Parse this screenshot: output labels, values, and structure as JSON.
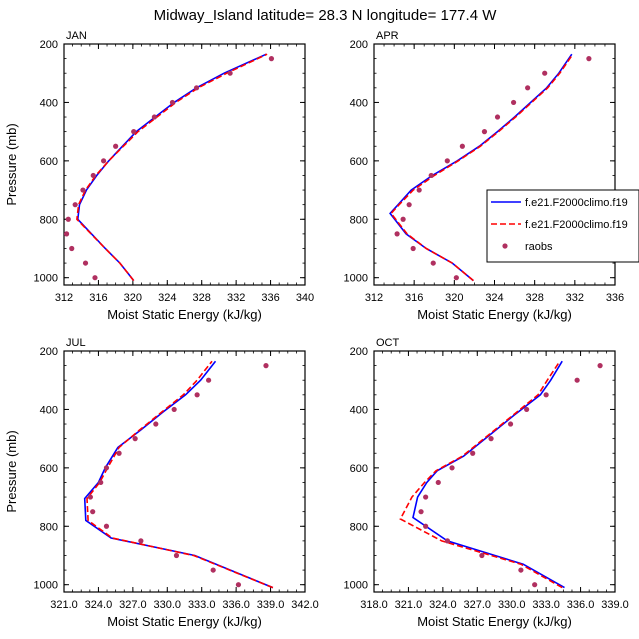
{
  "figure_title": "Midway_Island  latitude= 28.3 N longitude= 177.4 W",
  "legend": {
    "entries": [
      {
        "label": "f.e21.F2000climo.f19",
        "style": "solid",
        "color": "#0000ff"
      },
      {
        "label": "f.e21.F2000climo.f19",
        "style": "dashed",
        "color": "#ff0000"
      },
      {
        "label": "raobs",
        "style": "marker",
        "color": "#b03060"
      }
    ]
  },
  "chart_data": [
    {
      "type": "line",
      "panel_label": "JAN",
      "xlabel": "Moist Static Energy (kJ/kg)",
      "ylabel": "Pressure (mb)",
      "xlim": [
        312,
        340
      ],
      "ylim": [
        200,
        1025
      ],
      "y_inverted": true,
      "xticks": [
        "312",
        "316",
        "320",
        "324",
        "328",
        "332",
        "336",
        "340"
      ],
      "yticks": [
        "200",
        "400",
        "600",
        "800",
        "1000"
      ],
      "series": [
        {
          "style": "solid",
          "color": "#0000ff",
          "points": [
            [
              320.1,
              1010
            ],
            [
              318.5,
              950
            ],
            [
              316.8,
              900
            ],
            [
              313.6,
              800
            ],
            [
              313.8,
              750
            ],
            [
              314.6,
              700
            ],
            [
              315.8,
              650
            ],
            [
              317.2,
              600
            ],
            [
              318.8,
              550
            ],
            [
              320.4,
              500
            ],
            [
              322.6,
              450
            ],
            [
              324.8,
              400
            ],
            [
              327.4,
              350
            ],
            [
              330.6,
              300
            ],
            [
              335.5,
              235
            ]
          ]
        },
        {
          "style": "dashed",
          "color": "#ff0000",
          "points": [
            [
              320.1,
              1010
            ],
            [
              318.5,
              950
            ],
            [
              316.8,
              900
            ],
            [
              313.5,
              800
            ],
            [
              313.7,
              750
            ],
            [
              314.5,
              700
            ],
            [
              315.7,
              650
            ],
            [
              317.2,
              600
            ],
            [
              318.9,
              550
            ],
            [
              320.6,
              500
            ],
            [
              322.8,
              450
            ],
            [
              325.0,
              400
            ],
            [
              327.6,
              350
            ],
            [
              330.9,
              300
            ],
            [
              335.6,
              235
            ]
          ]
        },
        {
          "style": "marker",
          "color": "#b03060",
          "points": [
            [
              315.6,
              1000
            ],
            [
              314.5,
              950
            ],
            [
              312.9,
              900
            ],
            [
              312.3,
              850
            ],
            [
              312.5,
              800
            ],
            [
              313.3,
              750
            ],
            [
              314.2,
              700
            ],
            [
              315.4,
              650
            ],
            [
              316.6,
              600
            ],
            [
              318.0,
              550
            ],
            [
              320.1,
              500
            ],
            [
              322.5,
              450
            ],
            [
              324.6,
              400
            ],
            [
              327.4,
              350
            ],
            [
              331.3,
              300
            ],
            [
              336.1,
              250
            ]
          ]
        }
      ]
    },
    {
      "type": "line",
      "panel_label": "APR",
      "xlabel": "Moist Static Energy (kJ/kg)",
      "ylabel": "",
      "xlim": [
        312,
        336
      ],
      "ylim": [
        200,
        1025
      ],
      "y_inverted": true,
      "xticks": [
        "312",
        "316",
        "320",
        "324",
        "328",
        "332",
        "336"
      ],
      "yticks": [
        "200",
        "400",
        "600",
        "800",
        "1000"
      ],
      "series": [
        {
          "style": "solid",
          "color": "#0000ff",
          "points": [
            [
              321.9,
              1010
            ],
            [
              319.8,
              950
            ],
            [
              317.2,
              900
            ],
            [
              315.2,
              850
            ],
            [
              313.6,
              780
            ],
            [
              314.4,
              750
            ],
            [
              315.7,
              700
            ],
            [
              317.8,
              650
            ],
            [
              320.3,
              600
            ],
            [
              322.5,
              550
            ],
            [
              324.3,
              500
            ],
            [
              326.0,
              450
            ],
            [
              327.6,
              400
            ],
            [
              329.2,
              350
            ],
            [
              330.4,
              300
            ],
            [
              331.7,
              235
            ]
          ]
        },
        {
          "style": "dashed",
          "color": "#ff0000",
          "points": [
            [
              321.9,
              1010
            ],
            [
              319.8,
              950
            ],
            [
              317.2,
              900
            ],
            [
              315.3,
              850
            ],
            [
              313.7,
              780
            ],
            [
              314.5,
              750
            ],
            [
              315.9,
              700
            ],
            [
              318.0,
              650
            ],
            [
              320.4,
              600
            ],
            [
              322.6,
              550
            ],
            [
              324.4,
              500
            ],
            [
              326.1,
              450
            ],
            [
              327.7,
              400
            ],
            [
              329.3,
              350
            ],
            [
              330.5,
              300
            ],
            [
              331.8,
              235
            ]
          ]
        },
        {
          "style": "marker",
          "color": "#b03060",
          "points": [
            [
              320.2,
              1000
            ],
            [
              317.9,
              950
            ],
            [
              315.9,
              900
            ],
            [
              314.3,
              850
            ],
            [
              314.9,
              800
            ],
            [
              315.5,
              750
            ],
            [
              316.5,
              700
            ],
            [
              317.7,
              650
            ],
            [
              319.3,
              600
            ],
            [
              320.8,
              550
            ],
            [
              323.0,
              500
            ],
            [
              324.3,
              450
            ],
            [
              325.9,
              400
            ],
            [
              327.3,
              350
            ],
            [
              329.0,
              300
            ],
            [
              333.4,
              250
            ]
          ]
        }
      ]
    },
    {
      "type": "line",
      "panel_label": "JUL",
      "xlabel": "Moist Static Energy (kJ/kg)",
      "ylabel": "Pressure (mb)",
      "xlim": [
        321,
        342
      ],
      "ylim": [
        200,
        1025
      ],
      "y_inverted": true,
      "xticks": [
        "321.0",
        "324.0",
        "327.0",
        "330.0",
        "333.0",
        "336.0",
        "339.0",
        "342.0"
      ],
      "yticks": [
        "200",
        "400",
        "600",
        "800",
        "1000"
      ],
      "series": [
        {
          "style": "solid",
          "color": "#0000ff",
          "points": [
            [
              339.2,
              1010
            ],
            [
              332.4,
              900
            ],
            [
              325.1,
              840
            ],
            [
              322.9,
              780
            ],
            [
              322.8,
              705
            ],
            [
              324.0,
              650
            ],
            [
              324.6,
              600
            ],
            [
              325.7,
              530
            ],
            [
              327.7,
              470
            ],
            [
              329.6,
              410
            ],
            [
              331.6,
              350
            ],
            [
              332.9,
              300
            ],
            [
              334.2,
              235
            ]
          ]
        },
        {
          "style": "dashed",
          "color": "#ff0000",
          "points": [
            [
              339.2,
              1010
            ],
            [
              332.3,
              900
            ],
            [
              325.2,
              840
            ],
            [
              323.1,
              780
            ],
            [
              323.0,
              705
            ],
            [
              324.1,
              650
            ],
            [
              324.8,
              600
            ],
            [
              325.8,
              530
            ],
            [
              327.6,
              470
            ],
            [
              329.5,
              410
            ],
            [
              331.4,
              350
            ],
            [
              332.6,
              300
            ],
            [
              333.9,
              235
            ]
          ]
        },
        {
          "style": "marker",
          "color": "#b03060",
          "points": [
            [
              336.2,
              1000
            ],
            [
              334.0,
              950
            ],
            [
              330.8,
              900
            ],
            [
              327.7,
              850
            ],
            [
              324.7,
              800
            ],
            [
              323.5,
              750
            ],
            [
              323.3,
              700
            ],
            [
              324.2,
              650
            ],
            [
              324.7,
              600
            ],
            [
              325.8,
              550
            ],
            [
              327.2,
              500
            ],
            [
              329.0,
              450
            ],
            [
              330.6,
              400
            ],
            [
              332.6,
              350
            ],
            [
              333.6,
              300
            ],
            [
              338.6,
              250
            ]
          ]
        }
      ]
    },
    {
      "type": "line",
      "panel_label": "OCT",
      "xlabel": "Moist Static Energy (kJ/kg)",
      "ylabel": "",
      "xlim": [
        318,
        339
      ],
      "ylim": [
        200,
        1025
      ],
      "y_inverted": true,
      "xticks": [
        "318.0",
        "321.0",
        "324.0",
        "327.0",
        "330.0",
        "333.0",
        "336.0",
        "339.0"
      ],
      "yticks": [
        "200",
        "400",
        "600",
        "800",
        "1000"
      ],
      "series": [
        {
          "style": "solid",
          "color": "#0000ff",
          "points": [
            [
              334.6,
              1010
            ],
            [
              331.0,
              930
            ],
            [
              324.4,
              850
            ],
            [
              321.4,
              770
            ],
            [
              321.8,
              700
            ],
            [
              322.6,
              650
            ],
            [
              323.5,
              610
            ],
            [
              325.8,
              560
            ],
            [
              328.0,
              490
            ],
            [
              330.2,
              420
            ],
            [
              332.5,
              350
            ],
            [
              333.4,
              300
            ],
            [
              334.4,
              235
            ]
          ]
        },
        {
          "style": "dashed",
          "color": "#ff0000",
          "points": [
            [
              334.4,
              1010
            ],
            [
              330.8,
              930
            ],
            [
              323.9,
              850
            ],
            [
              320.3,
              775
            ],
            [
              321.3,
              700
            ],
            [
              322.4,
              650
            ],
            [
              323.4,
              610
            ],
            [
              325.7,
              560
            ],
            [
              327.9,
              490
            ],
            [
              330.1,
              420
            ],
            [
              332.3,
              350
            ],
            [
              333.1,
              300
            ],
            [
              334.2,
              235
            ]
          ]
        },
        {
          "style": "marker",
          "color": "#b03060",
          "points": [
            [
              332.0,
              1000
            ],
            [
              330.8,
              950
            ],
            [
              327.4,
              900
            ],
            [
              324.4,
              850
            ],
            [
              322.5,
              800
            ],
            [
              322.1,
              750
            ],
            [
              322.5,
              700
            ],
            [
              323.6,
              650
            ],
            [
              324.8,
              600
            ],
            [
              326.6,
              550
            ],
            [
              328.2,
              500
            ],
            [
              329.9,
              450
            ],
            [
              331.3,
              400
            ],
            [
              333.0,
              350
            ],
            [
              335.7,
              300
            ],
            [
              337.7,
              250
            ]
          ]
        }
      ]
    }
  ]
}
